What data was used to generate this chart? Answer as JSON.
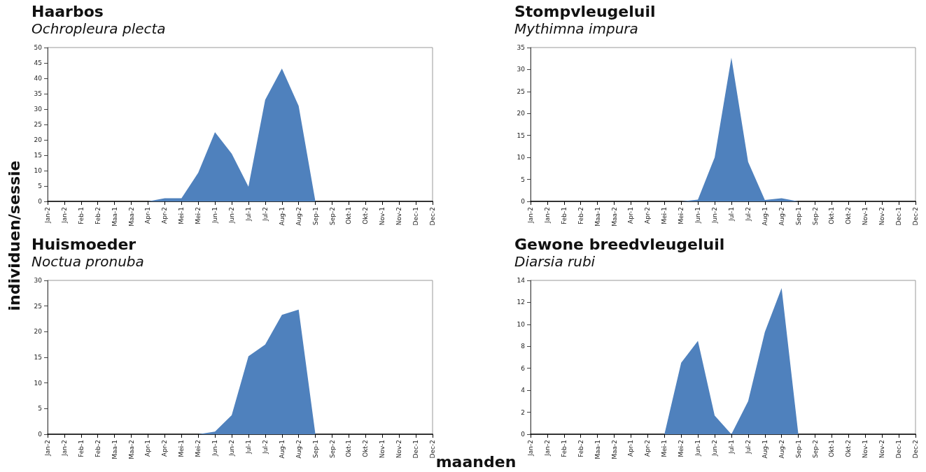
{
  "chart_data": [
    {
      "type": "area",
      "title": "Haarbos",
      "subtitle": "Ochropleura plecta",
      "ylabel": "individuen/sessie",
      "categories": [
        "Jan-2",
        "Jan-2",
        "Feb-1",
        "Feb-2",
        "Maa-1",
        "Maa-2",
        "Apr-1",
        "Apr-2",
        "Mei-1",
        "Mei-2",
        "Jun-1",
        "Jun-2",
        "Jul-1",
        "Jul-2",
        "Aug-1",
        "Aug-2",
        "Sep-1",
        "Sep-2",
        "Okt-1",
        "Okt-2",
        "Nov-1",
        "Nov-2",
        "Dec-1",
        "Dec-2"
      ],
      "values": [
        0,
        0,
        0,
        0,
        0,
        0,
        0,
        1,
        1,
        9.3,
        22.5,
        15.5,
        4.8,
        33,
        43.2,
        31,
        0,
        0,
        0,
        0,
        0,
        0,
        0,
        0
      ],
      "color": "#4f81bd",
      "ylim": [
        0,
        50
      ],
      "yticks": [
        0,
        5,
        10,
        15,
        20,
        25,
        30,
        35,
        40,
        45,
        50
      ],
      "grid": false
    },
    {
      "type": "area",
      "title": "Stompvleugeluil",
      "subtitle": "Mythimna impura",
      "categories": [
        "Jan-2",
        "Jan-2",
        "Feb-1",
        "Feb-2",
        "Maa-1",
        "Maa-2",
        "Apr-1",
        "Apr-2",
        "Mei-1",
        "Mei-2",
        "Jun-1",
        "Jun-2",
        "Jul-1",
        "Jul-2",
        "Aug-1",
        "Aug-2",
        "Sep-1",
        "Sep-2",
        "Okt-1",
        "Okt-2",
        "Nov-1",
        "Nov-2",
        "Dec-1",
        "Dec-2"
      ],
      "values": [
        0,
        0,
        0,
        0,
        0,
        0,
        0,
        0,
        0,
        0,
        0.4,
        10,
        32.7,
        9,
        0.3,
        0.7,
        0,
        0,
        0,
        0,
        0,
        0,
        0,
        0
      ],
      "color": "#4f81bd",
      "ylim": [
        0,
        35
      ],
      "yticks": [
        0,
        5,
        10,
        15,
        20,
        25,
        30,
        35
      ],
      "grid": false
    },
    {
      "type": "area",
      "title": "Huismoeder",
      "subtitle": "Noctua pronuba",
      "xlabel": "maanden",
      "categories": [
        "Jan-2",
        "Jan-2",
        "Feb-1",
        "Feb-2",
        "Maa-1",
        "Maa-2",
        "Apr-1",
        "Apr-2",
        "Mei-1",
        "Mei-2",
        "Jun-1",
        "Jun-2",
        "Jul-1",
        "Jul-2",
        "Aug-1",
        "Aug-2",
        "Sep-1",
        "Sep-2",
        "Okt-1",
        "Okt-2",
        "Nov-1",
        "Nov-2",
        "Dec-1",
        "Dec-2"
      ],
      "values": [
        0,
        0,
        0,
        0,
        0,
        0,
        0,
        0,
        0,
        0,
        0.5,
        3.7,
        15.2,
        17.5,
        23.3,
        24.3,
        0,
        0,
        0,
        0,
        0,
        0,
        0,
        0
      ],
      "color": "#4f81bd",
      "ylim": [
        0,
        30
      ],
      "yticks": [
        0,
        5,
        10,
        15,
        20,
        25,
        30
      ],
      "grid": false
    },
    {
      "type": "area",
      "title": "Gewone breedvleugeluil",
      "subtitle": "Diarsia rubi",
      "categories": [
        "Jan-2",
        "Jan-2",
        "Feb-1",
        "Feb-2",
        "Maa-1",
        "Maa-2",
        "Apr-1",
        "Apr-2",
        "Mei-1",
        "Mei-2",
        "Jun-1",
        "Jun-2",
        "Jul-1",
        "Jul-2",
        "Aug-1",
        "Aug-2",
        "Sep-1",
        "Sep-2",
        "Okt-1",
        "Okt-2",
        "Nov-1",
        "Nov-2",
        "Dec-1",
        "Dec-2"
      ],
      "values": [
        0,
        0,
        0,
        0,
        0,
        0,
        0,
        0,
        0,
        6.5,
        8.5,
        1.7,
        0,
        3,
        9.3,
        13.3,
        0,
        0,
        0,
        0,
        0,
        0,
        0,
        0
      ],
      "color": "#4f81bd",
      "ylim": [
        0,
        14
      ],
      "yticks": [
        0,
        2,
        4,
        6,
        8,
        10,
        12,
        14
      ],
      "grid": false
    }
  ]
}
